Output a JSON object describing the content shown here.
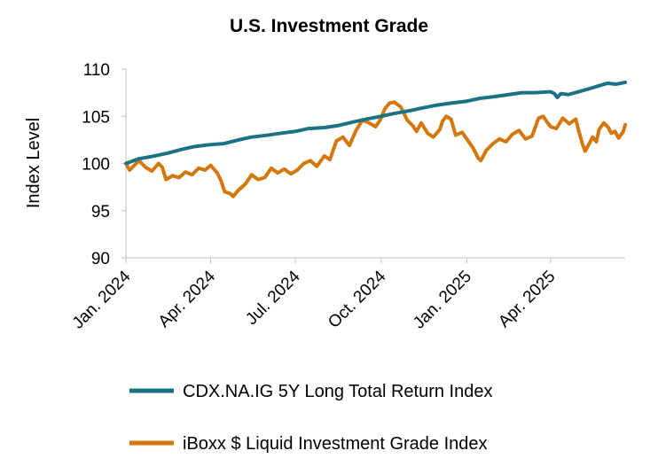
{
  "chart_data": {
    "type": "line",
    "title": "U.S. Investment Grade",
    "xlabel": "",
    "ylabel": "Index Level",
    "ylim": [
      90,
      110
    ],
    "yticks": [
      90,
      95,
      100,
      105,
      110
    ],
    "xlim": [
      "2024-01-01",
      "2025-06-20"
    ],
    "x_ticks": [
      {
        "date": "2024-01-01",
        "label": "Jan. 2024"
      },
      {
        "date": "2024-04-01",
        "label": "Apr. 2024"
      },
      {
        "date": "2024-07-01",
        "label": "Jul. 2024"
      },
      {
        "date": "2024-10-01",
        "label": "Oct. 2024"
      },
      {
        "date": "2025-01-01",
        "label": "Jan. 2025"
      },
      {
        "date": "2025-04-01",
        "label": "Apr. 2025"
      }
    ],
    "grid": false,
    "legend_position": "bottom",
    "series": [
      {
        "name": "CDX.NA.IG 5Y Long Total Return Index",
        "color": "#1a7384",
        "points": [
          [
            "2024-01-01",
            100.0
          ],
          [
            "2024-01-15",
            100.5
          ],
          [
            "2024-02-01",
            100.8
          ],
          [
            "2024-02-15",
            101.1
          ],
          [
            "2024-03-01",
            101.5
          ],
          [
            "2024-03-15",
            101.8
          ],
          [
            "2024-04-01",
            102.0
          ],
          [
            "2024-04-15",
            102.1
          ],
          [
            "2024-05-01",
            102.5
          ],
          [
            "2024-05-15",
            102.8
          ],
          [
            "2024-06-01",
            103.0
          ],
          [
            "2024-06-15",
            103.2
          ],
          [
            "2024-07-01",
            103.4
          ],
          [
            "2024-07-15",
            103.7
          ],
          [
            "2024-08-01",
            103.8
          ],
          [
            "2024-08-15",
            104.0
          ],
          [
            "2024-09-01",
            104.4
          ],
          [
            "2024-09-15",
            104.7
          ],
          [
            "2024-10-01",
            105.0
          ],
          [
            "2024-10-15",
            105.3
          ],
          [
            "2024-11-01",
            105.6
          ],
          [
            "2024-11-15",
            105.9
          ],
          [
            "2024-12-01",
            106.2
          ],
          [
            "2024-12-15",
            106.4
          ],
          [
            "2025-01-01",
            106.6
          ],
          [
            "2025-01-15",
            106.9
          ],
          [
            "2025-02-01",
            107.1
          ],
          [
            "2025-02-15",
            107.3
          ],
          [
            "2025-03-01",
            107.5
          ],
          [
            "2025-03-15",
            107.5
          ],
          [
            "2025-04-01",
            107.6
          ],
          [
            "2025-04-05",
            107.4
          ],
          [
            "2025-04-08",
            107.0
          ],
          [
            "2025-04-12",
            107.4
          ],
          [
            "2025-04-20",
            107.3
          ],
          [
            "2025-05-01",
            107.6
          ],
          [
            "2025-05-15",
            108.0
          ],
          [
            "2025-06-01",
            108.5
          ],
          [
            "2025-06-10",
            108.4
          ],
          [
            "2025-06-20",
            108.6
          ]
        ]
      },
      {
        "name": "iBoxx $ Liquid Investment Grade Index",
        "color": "#d4770c",
        "points": [
          [
            "2024-01-01",
            100.0
          ],
          [
            "2024-01-05",
            99.3
          ],
          [
            "2024-01-10",
            99.8
          ],
          [
            "2024-01-15",
            100.3
          ],
          [
            "2024-01-22",
            99.6
          ],
          [
            "2024-01-29",
            99.2
          ],
          [
            "2024-02-05",
            100.0
          ],
          [
            "2024-02-09",
            99.6
          ],
          [
            "2024-02-13",
            98.3
          ],
          [
            "2024-02-20",
            98.7
          ],
          [
            "2024-02-27",
            98.5
          ],
          [
            "2024-03-05",
            99.1
          ],
          [
            "2024-03-12",
            98.8
          ],
          [
            "2024-03-19",
            99.5
          ],
          [
            "2024-03-26",
            99.3
          ],
          [
            "2024-04-01",
            99.8
          ],
          [
            "2024-04-08",
            99.0
          ],
          [
            "2024-04-12",
            98.2
          ],
          [
            "2024-04-16",
            97.0
          ],
          [
            "2024-04-22",
            96.8
          ],
          [
            "2024-04-25",
            96.5
          ],
          [
            "2024-05-01",
            97.2
          ],
          [
            "2024-05-08",
            97.8
          ],
          [
            "2024-05-15",
            98.8
          ],
          [
            "2024-05-22",
            98.3
          ],
          [
            "2024-05-29",
            98.5
          ],
          [
            "2024-06-05",
            99.5
          ],
          [
            "2024-06-12",
            99.0
          ],
          [
            "2024-06-19",
            99.4
          ],
          [
            "2024-06-26",
            98.9
          ],
          [
            "2024-07-03",
            99.3
          ],
          [
            "2024-07-10",
            100.0
          ],
          [
            "2024-07-17",
            100.3
          ],
          [
            "2024-07-24",
            99.7
          ],
          [
            "2024-08-01",
            100.8
          ],
          [
            "2024-08-07",
            100.4
          ],
          [
            "2024-08-14",
            102.4
          ],
          [
            "2024-08-21",
            102.8
          ],
          [
            "2024-08-28",
            101.9
          ],
          [
            "2024-09-04",
            103.5
          ],
          [
            "2024-09-11",
            104.6
          ],
          [
            "2024-09-18",
            104.3
          ],
          [
            "2024-09-25",
            103.9
          ],
          [
            "2024-09-30",
            104.6
          ],
          [
            "2024-10-05",
            105.8
          ],
          [
            "2024-10-10",
            106.4
          ],
          [
            "2024-10-15",
            106.5
          ],
          [
            "2024-10-22",
            106.0
          ],
          [
            "2024-10-29",
            104.6
          ],
          [
            "2024-11-04",
            104.0
          ],
          [
            "2024-11-08",
            103.4
          ],
          [
            "2024-11-13",
            104.3
          ],
          [
            "2024-11-20",
            103.2
          ],
          [
            "2024-11-26",
            102.8
          ],
          [
            "2024-12-03",
            103.6
          ],
          [
            "2024-12-06",
            104.5
          ],
          [
            "2024-12-10",
            105.0
          ],
          [
            "2024-12-15",
            104.7
          ],
          [
            "2024-12-20",
            103.0
          ],
          [
            "2024-12-27",
            103.3
          ],
          [
            "2025-01-03",
            102.3
          ],
          [
            "2025-01-08",
            101.6
          ],
          [
            "2025-01-13",
            100.6
          ],
          [
            "2025-01-16",
            100.3
          ],
          [
            "2025-01-22",
            101.4
          ],
          [
            "2025-01-29",
            102.1
          ],
          [
            "2025-02-05",
            102.6
          ],
          [
            "2025-02-12",
            102.3
          ],
          [
            "2025-02-19",
            103.1
          ],
          [
            "2025-02-26",
            103.5
          ],
          [
            "2025-03-05",
            102.6
          ],
          [
            "2025-03-12",
            102.9
          ],
          [
            "2025-03-19",
            104.8
          ],
          [
            "2025-03-24",
            105.0
          ],
          [
            "2025-03-28",
            104.4
          ],
          [
            "2025-04-01",
            103.9
          ],
          [
            "2025-04-07",
            103.7
          ],
          [
            "2025-04-14",
            104.8
          ],
          [
            "2025-04-21",
            104.2
          ],
          [
            "2025-04-28",
            104.7
          ],
          [
            "2025-05-01",
            103.5
          ],
          [
            "2025-05-05",
            102.1
          ],
          [
            "2025-05-08",
            101.3
          ],
          [
            "2025-05-13",
            102.2
          ],
          [
            "2025-05-16",
            102.8
          ],
          [
            "2025-05-20",
            102.3
          ],
          [
            "2025-05-23",
            103.6
          ],
          [
            "2025-05-28",
            104.3
          ],
          [
            "2025-06-02",
            103.8
          ],
          [
            "2025-06-05",
            103.2
          ],
          [
            "2025-06-09",
            103.4
          ],
          [
            "2025-06-13",
            102.7
          ],
          [
            "2025-06-16",
            103.1
          ],
          [
            "2025-06-18",
            103.4
          ],
          [
            "2025-06-20",
            104.1
          ]
        ]
      }
    ]
  }
}
